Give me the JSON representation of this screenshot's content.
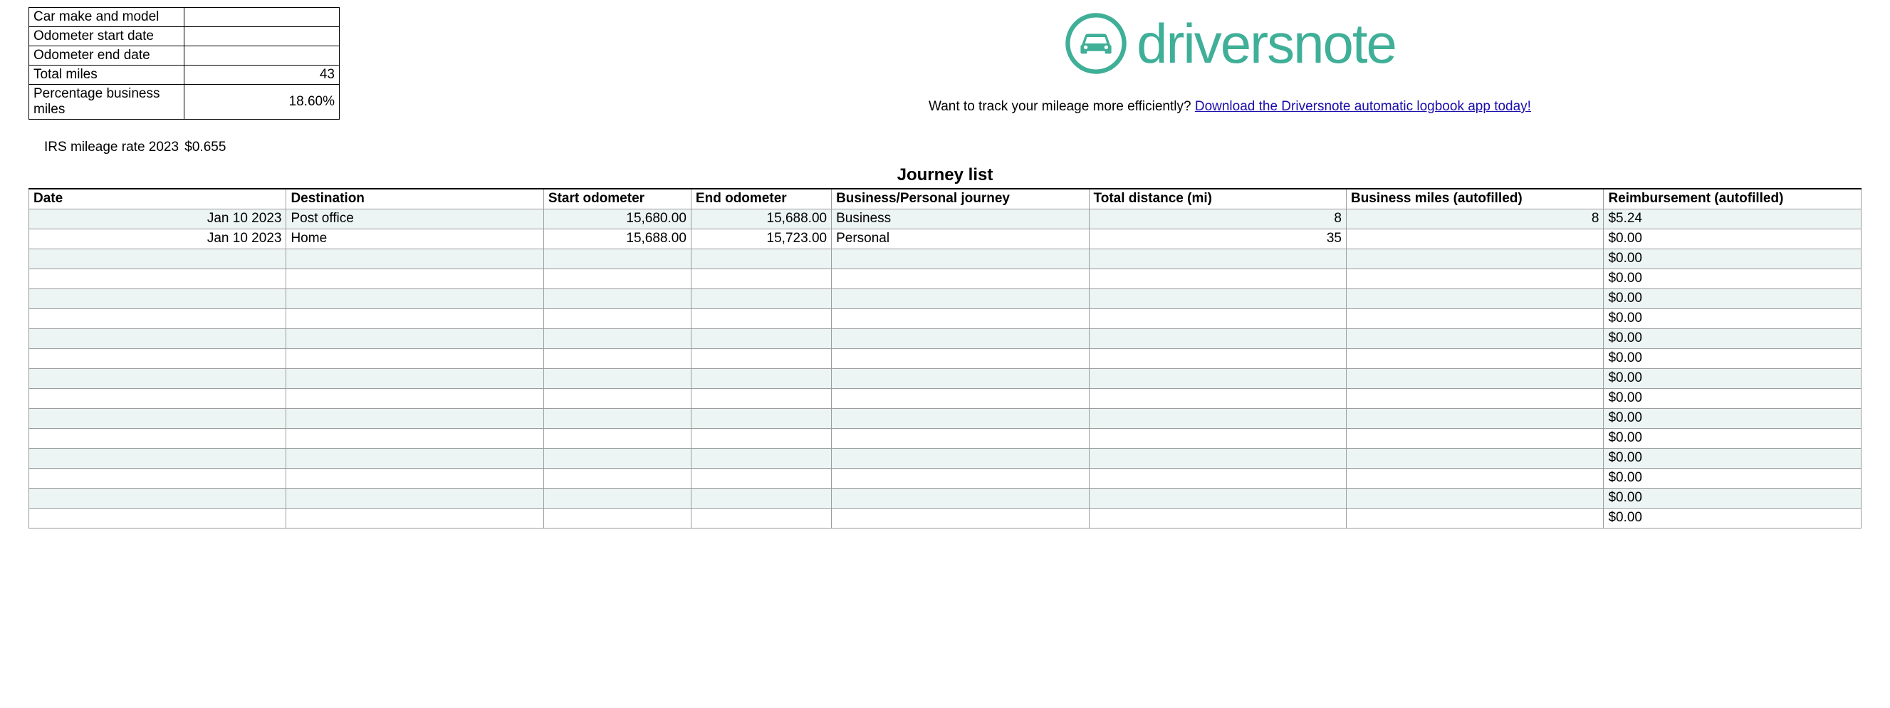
{
  "info": {
    "rows": [
      {
        "label": "Car make and model",
        "value": ""
      },
      {
        "label": "Odometer start date",
        "value": ""
      },
      {
        "label": "Odometer end date",
        "value": ""
      },
      {
        "label": "Total miles",
        "value": "43"
      },
      {
        "label": "Percentage business miles",
        "value": "18.60%"
      }
    ],
    "rate_label": "IRS mileage rate 2023",
    "rate_value": "$0.655"
  },
  "brand": {
    "name": "driversnote",
    "color": "#3faf98"
  },
  "promo": {
    "lead": "Want to track your mileage more efficiently? ",
    "link_text": "Download the Driversnote automatic logbook app today!",
    "link_href": "#"
  },
  "journey": {
    "title": "Journey list",
    "columns": [
      "Date",
      "Destination",
      "Start odometer",
      "End odometer",
      "Business/Personal journey",
      "Total distance (mi)",
      "Business miles (autofilled)",
      "Reimbursement (autofilled)"
    ],
    "rows": [
      {
        "date": "Jan 10 2023",
        "dest": "Post office",
        "start": "15,680.00",
        "end": "15,688.00",
        "type": "Business",
        "dist": "8",
        "bmiles": "8",
        "reimb": "$5.24"
      },
      {
        "date": "Jan 10 2023",
        "dest": "Home",
        "start": "15,688.00",
        "end": "15,723.00",
        "type": "Personal",
        "dist": "35",
        "bmiles": "",
        "reimb": "$0.00"
      },
      {
        "date": "",
        "dest": "",
        "start": "",
        "end": "",
        "type": "",
        "dist": "",
        "bmiles": "",
        "reimb": "$0.00"
      },
      {
        "date": "",
        "dest": "",
        "start": "",
        "end": "",
        "type": "",
        "dist": "",
        "bmiles": "",
        "reimb": "$0.00"
      },
      {
        "date": "",
        "dest": "",
        "start": "",
        "end": "",
        "type": "",
        "dist": "",
        "bmiles": "",
        "reimb": "$0.00"
      },
      {
        "date": "",
        "dest": "",
        "start": "",
        "end": "",
        "type": "",
        "dist": "",
        "bmiles": "",
        "reimb": "$0.00"
      },
      {
        "date": "",
        "dest": "",
        "start": "",
        "end": "",
        "type": "",
        "dist": "",
        "bmiles": "",
        "reimb": "$0.00"
      },
      {
        "date": "",
        "dest": "",
        "start": "",
        "end": "",
        "type": "",
        "dist": "",
        "bmiles": "",
        "reimb": "$0.00"
      },
      {
        "date": "",
        "dest": "",
        "start": "",
        "end": "",
        "type": "",
        "dist": "",
        "bmiles": "",
        "reimb": "$0.00"
      },
      {
        "date": "",
        "dest": "",
        "start": "",
        "end": "",
        "type": "",
        "dist": "",
        "bmiles": "",
        "reimb": "$0.00"
      },
      {
        "date": "",
        "dest": "",
        "start": "",
        "end": "",
        "type": "",
        "dist": "",
        "bmiles": "",
        "reimb": "$0.00"
      },
      {
        "date": "",
        "dest": "",
        "start": "",
        "end": "",
        "type": "",
        "dist": "",
        "bmiles": "",
        "reimb": "$0.00"
      },
      {
        "date": "",
        "dest": "",
        "start": "",
        "end": "",
        "type": "",
        "dist": "",
        "bmiles": "",
        "reimb": "$0.00"
      },
      {
        "date": "",
        "dest": "",
        "start": "",
        "end": "",
        "type": "",
        "dist": "",
        "bmiles": "",
        "reimb": "$0.00"
      },
      {
        "date": "",
        "dest": "",
        "start": "",
        "end": "",
        "type": "",
        "dist": "",
        "bmiles": "",
        "reimb": "$0.00"
      },
      {
        "date": "",
        "dest": "",
        "start": "",
        "end": "",
        "type": "",
        "dist": "",
        "bmiles": "",
        "reimb": "$0.00"
      }
    ]
  },
  "styling": {
    "row_stripe_colors": [
      "#ecf5f3",
      "#ffffff"
    ],
    "border_color": "#9c9c9c",
    "header_top_border": "#000000",
    "brand_green": "#3faf98",
    "link_color": "#1a0dab",
    "body_font": "Arial",
    "title_font_weight": 700,
    "column_align": {
      "Date": "right",
      "Destination": "left",
      "Start odometer": "right",
      "End odometer": "right",
      "Business/Personal journey": "left",
      "Total distance (mi)": "right",
      "Business miles (autofilled)": "right",
      "Reimbursement (autofilled)": "left"
    }
  }
}
